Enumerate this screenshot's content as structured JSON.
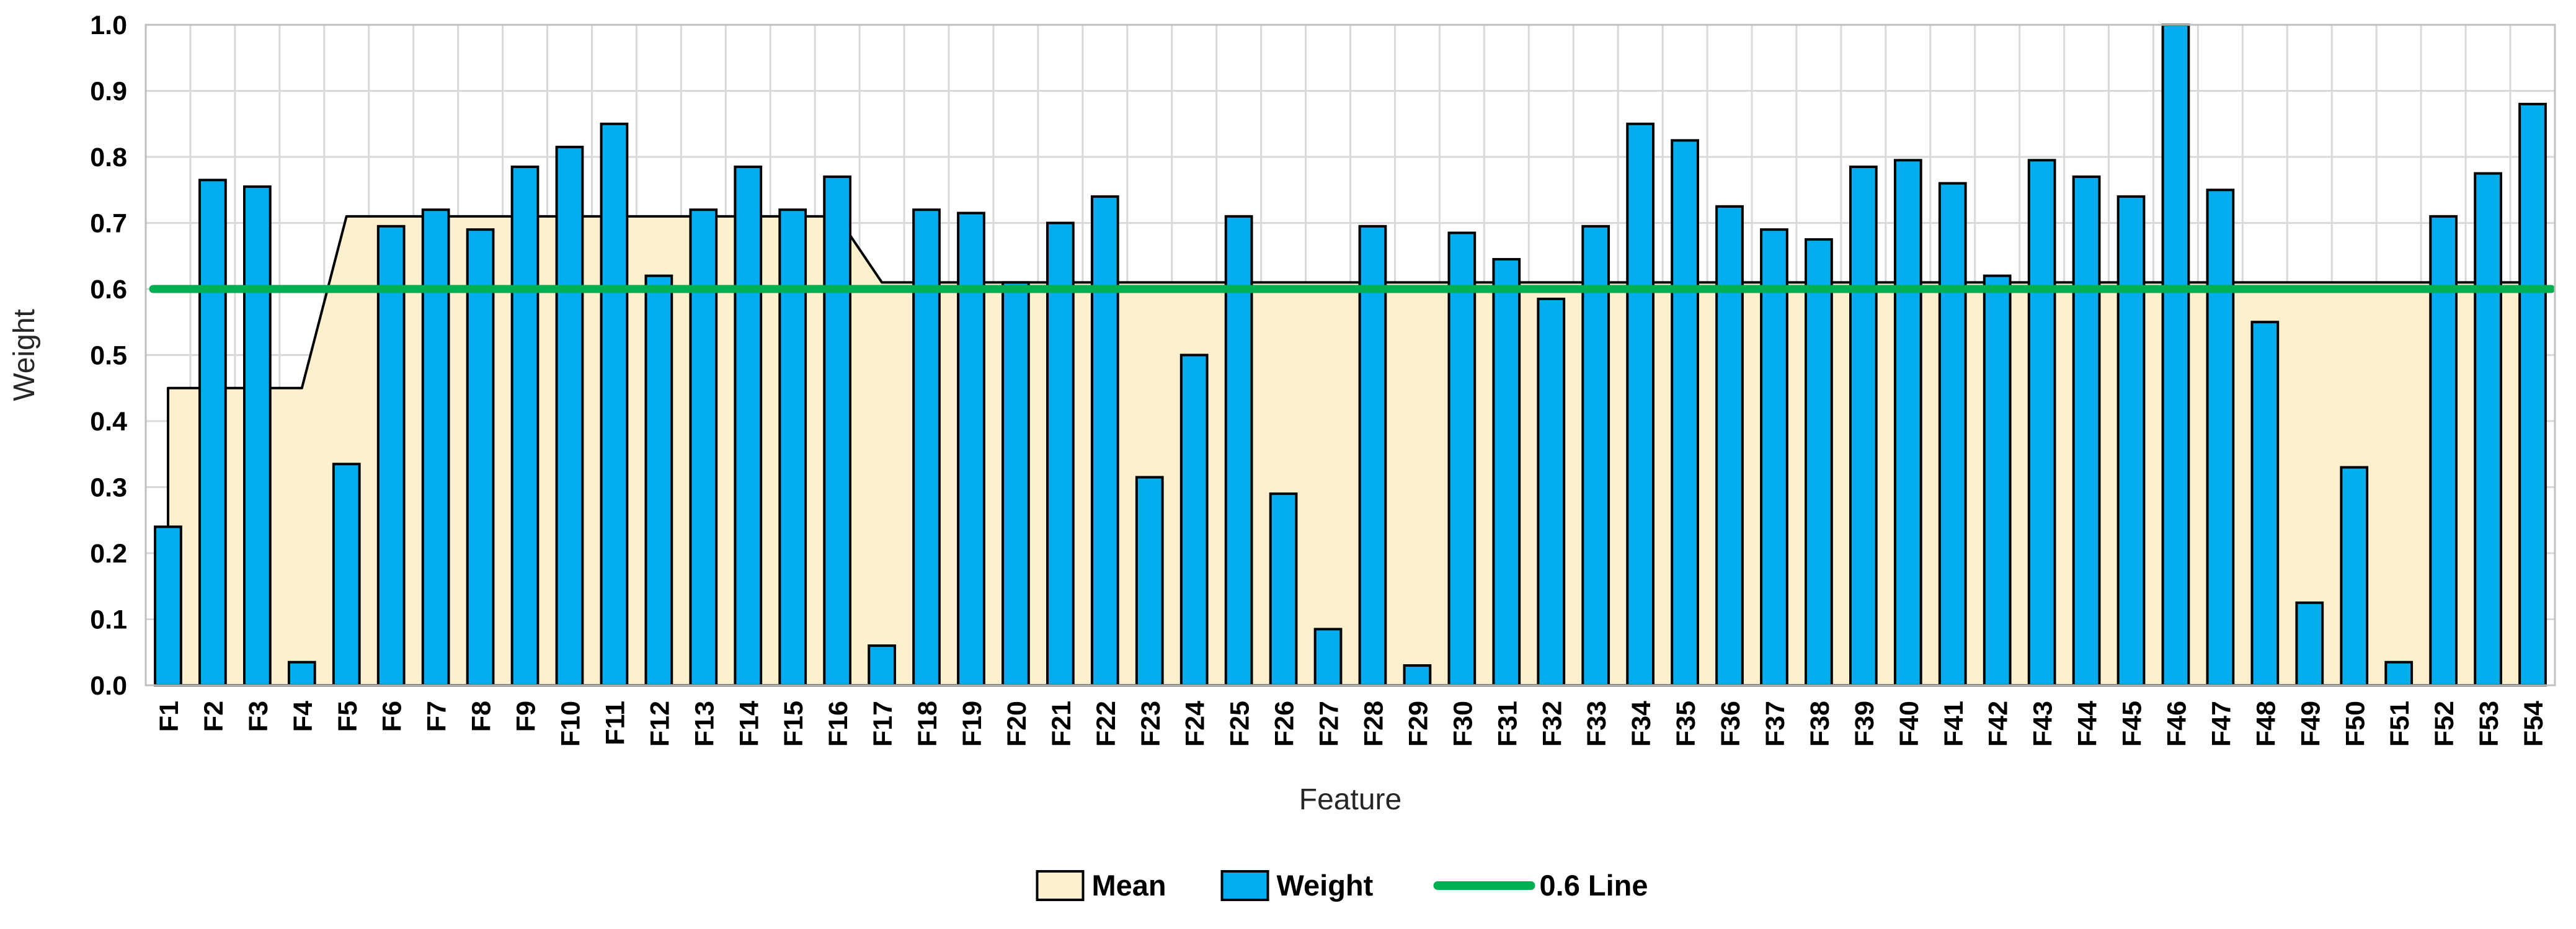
{
  "chart_data": {
    "type": "bar",
    "title": "",
    "xlabel": "Feature",
    "ylabel": "Weight",
    "ylim": [
      0.0,
      1.0
    ],
    "ytick_step": 0.1,
    "grid": true,
    "legend_position": "bottom",
    "categories": [
      "F1",
      "F2",
      "F3",
      "F4",
      "F5",
      "F6",
      "F7",
      "F8",
      "F9",
      "F10",
      "F11",
      "F12",
      "F13",
      "F14",
      "F15",
      "F16",
      "F17",
      "F18",
      "F19",
      "F20",
      "F21",
      "F22",
      "F23",
      "F24",
      "F25",
      "F26",
      "F27",
      "F28",
      "F29",
      "F30",
      "F31",
      "F32",
      "F33",
      "F34",
      "F35",
      "F36",
      "F37",
      "F38",
      "F39",
      "F40",
      "F41",
      "F42",
      "F43",
      "F44",
      "F45",
      "F46",
      "F47",
      "F48",
      "F49",
      "F50",
      "F51",
      "F52",
      "F53",
      "F54"
    ],
    "series": [
      {
        "name": "Mean",
        "type": "area",
        "color": "#FDF0CD",
        "border": "#000000",
        "values": [
          0.45,
          0.45,
          0.45,
          0.45,
          0.71,
          0.71,
          0.71,
          0.71,
          0.71,
          0.71,
          0.71,
          0.71,
          0.71,
          0.71,
          0.71,
          0.71,
          0.61,
          0.61,
          0.61,
          0.61,
          0.61,
          0.61,
          0.61,
          0.61,
          0.61,
          0.61,
          0.61,
          0.61,
          0.61,
          0.61,
          0.61,
          0.61,
          0.61,
          0.61,
          0.61,
          0.61,
          0.61,
          0.61,
          0.61,
          0.61,
          0.61,
          0.61,
          0.61,
          0.61,
          0.61,
          0.61,
          0.61,
          0.61,
          0.61,
          0.61,
          0.61,
          0.61,
          0.61,
          0.61
        ]
      },
      {
        "name": "Weight",
        "type": "bar",
        "color": "#00AEEF",
        "border": "#000000",
        "values": [
          0.24,
          0.765,
          0.755,
          0.035,
          0.335,
          0.695,
          0.72,
          0.69,
          0.785,
          0.815,
          0.85,
          0.62,
          0.72,
          0.785,
          0.72,
          0.77,
          0.06,
          0.72,
          0.715,
          0.61,
          0.7,
          0.74,
          0.315,
          0.5,
          0.71,
          0.29,
          0.085,
          0.695,
          0.03,
          0.685,
          0.645,
          0.585,
          0.695,
          0.85,
          0.825,
          0.725,
          0.69,
          0.675,
          0.785,
          0.795,
          0.76,
          0.62,
          0.795,
          0.77,
          0.74,
          1.0,
          0.75,
          0.55,
          0.125,
          0.33,
          0.035,
          0.71,
          0.775,
          0.88
        ]
      },
      {
        "name": "0.6 Line",
        "type": "hline",
        "color": "#00B050",
        "value": 0.6
      }
    ]
  },
  "colors": {
    "background": "#FFFFFF",
    "gridline": "#D9D9D9",
    "plot_border": "#BFBFBF",
    "tick_text": "#000000",
    "title_text": "#262626"
  }
}
